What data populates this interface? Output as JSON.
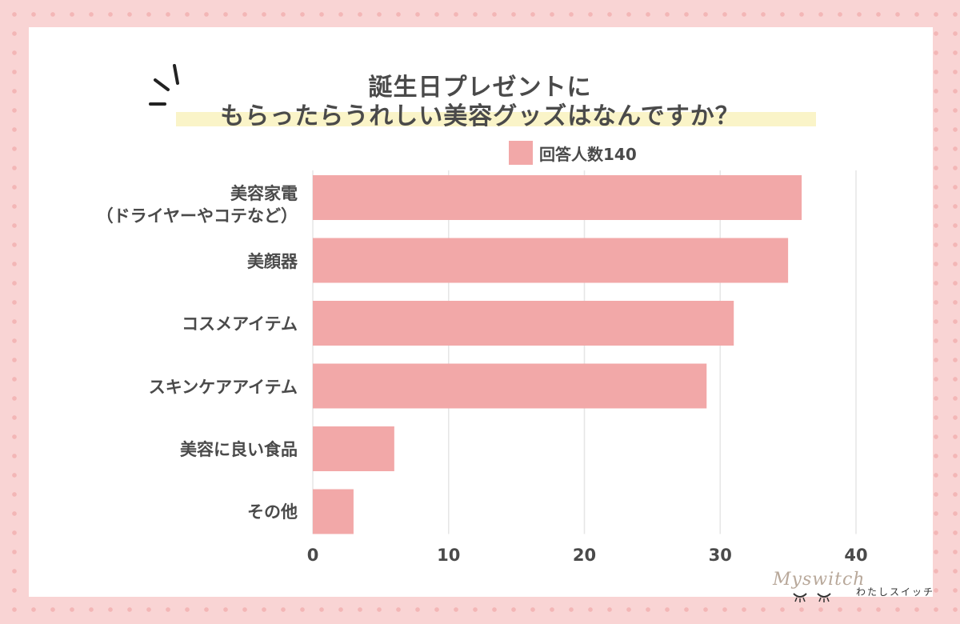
{
  "title": {
    "line1": "誕生日プレゼントに",
    "line2": "もらったらうれしい美容グッズはなんですか？"
  },
  "legend": {
    "label": "回答人数140"
  },
  "colors": {
    "bar": "#f2a8a8",
    "grid": "#e6e6e6",
    "text": "#4a4a4a",
    "highlight": "#faf4c8"
  },
  "brand": {
    "script": "Myswitch",
    "jp": "わたしスイッチ"
  },
  "chart_data": {
    "type": "bar",
    "orientation": "horizontal",
    "title": "誕生日プレゼントにもらったらうれしい美容グッズはなんですか？",
    "categories": [
      [
        "美容家電",
        "（ドライヤーやコテなど）"
      ],
      [
        "美顔器"
      ],
      [
        "コスメアイテム"
      ],
      [
        "スキンケアアイテム"
      ],
      [
        "美容に良い食品"
      ],
      [
        "その他"
      ]
    ],
    "series": [
      {
        "name": "回答人数140",
        "values": [
          36,
          35,
          31,
          29,
          6,
          3
        ]
      }
    ],
    "xlim": [
      0,
      40
    ],
    "xticks": [
      0,
      10,
      20,
      30,
      40
    ],
    "xlabel": "",
    "ylabel": "",
    "grid": true,
    "legend_position": "top"
  }
}
